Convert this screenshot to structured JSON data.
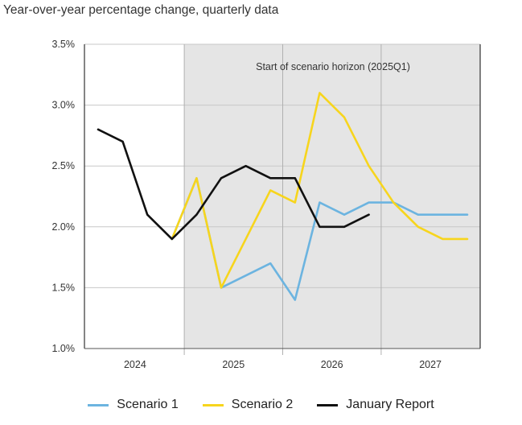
{
  "chart_data": {
    "type": "line",
    "subtitle": "Year-over-year percentage change, quarterly data",
    "annotation": "Start of scenario horizon (2025Q1)",
    "shaded_region_start": "2024Q4",
    "x": [
      "2024Q1",
      "2024Q2",
      "2024Q3",
      "2024Q4",
      "2025Q1",
      "2025Q2",
      "2025Q3",
      "2025Q4",
      "2026Q1",
      "2026Q2",
      "2026Q3",
      "2026Q4",
      "2027Q1",
      "2027Q2",
      "2027Q3",
      "2027Q4"
    ],
    "year_labels": [
      "2024",
      "2025",
      "2026",
      "2027"
    ],
    "ylim": [
      1.0,
      3.5
    ],
    "yticks": [
      {
        "value": 1.0,
        "label": "1.0%"
      },
      {
        "value": 1.5,
        "label": "1.5%"
      },
      {
        "value": 2.0,
        "label": "2.0%"
      },
      {
        "value": 2.5,
        "label": "2.5%"
      },
      {
        "value": 3.0,
        "label": "3.0%"
      },
      {
        "value": 3.5,
        "label": "3.5%"
      }
    ],
    "series": [
      {
        "name": "Scenario 1",
        "color": "#6cb4e0",
        "values": [
          null,
          null,
          null,
          1.9,
          2.4,
          1.5,
          1.6,
          1.7,
          1.4,
          2.2,
          2.1,
          2.2,
          2.2,
          2.1,
          2.1,
          2.1
        ]
      },
      {
        "name": "Scenario 2",
        "color": "#f7d51d",
        "values": [
          null,
          null,
          null,
          1.9,
          2.4,
          1.5,
          1.9,
          2.3,
          2.2,
          3.1,
          2.9,
          2.5,
          2.2,
          2.0,
          1.9,
          1.9
        ]
      },
      {
        "name": "January Report",
        "color": "#111111",
        "values": [
          2.8,
          2.7,
          2.1,
          1.9,
          2.1,
          2.4,
          2.5,
          2.4,
          2.4,
          2.0,
          2.0,
          2.1,
          null,
          null,
          null,
          null
        ]
      }
    ]
  }
}
